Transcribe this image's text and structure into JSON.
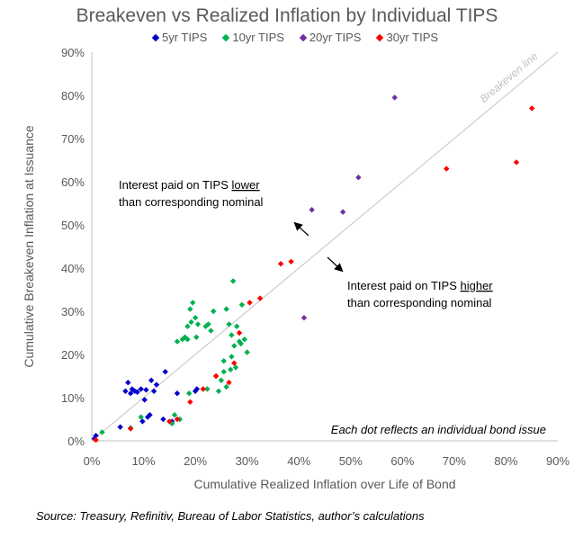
{
  "chart_data": {
    "type": "scatter",
    "title": "Breakeven vs Realized Inflation by Individual TIPS",
    "xlabel": "Cumulative Realized Inflation over Life of Bond",
    "ylabel": "Cumulative Breakeven Inflation at Issuance",
    "xlim": [
      0,
      90
    ],
    "ylim": [
      0,
      90
    ],
    "x_ticks": [
      "0%",
      "10%",
      "20%",
      "30%",
      "40%",
      "50%",
      "60%",
      "70%",
      "80%",
      "90%"
    ],
    "y_ticks": [
      "0%",
      "10%",
      "20%",
      "30%",
      "40%",
      "50%",
      "60%",
      "70%",
      "80%",
      "90%"
    ],
    "grid": false,
    "legend_position": "top",
    "series": [
      {
        "name": "5yr TIPS",
        "color": "#0000CC",
        "points": [
          [
            0.5,
            0.5
          ],
          [
            0.8,
            1.2
          ],
          [
            5.5,
            3.2
          ],
          [
            6.5,
            11.5
          ],
          [
            7.0,
            13.5
          ],
          [
            7.5,
            11.0
          ],
          [
            7.8,
            12.0
          ],
          [
            8.3,
            11.5
          ],
          [
            8.8,
            11.3
          ],
          [
            9.5,
            12.0
          ],
          [
            9.8,
            4.5
          ],
          [
            10.2,
            9.5
          ],
          [
            10.5,
            11.8
          ],
          [
            10.8,
            5.5
          ],
          [
            11.2,
            6.0
          ],
          [
            11.5,
            14.0
          ],
          [
            12.0,
            11.5
          ],
          [
            12.5,
            13.0
          ],
          [
            13.8,
            5.0
          ],
          [
            14.2,
            16.0
          ],
          [
            15.5,
            4.5
          ],
          [
            16.5,
            11.0
          ],
          [
            20.0,
            11.5
          ],
          [
            20.3,
            12.0
          ]
        ]
      },
      {
        "name": "10yr TIPS",
        "color": "#00B050",
        "points": [
          [
            2.0,
            2.0
          ],
          [
            7.5,
            3.0
          ],
          [
            9.5,
            5.5
          ],
          [
            15.5,
            4.0
          ],
          [
            16.0,
            6.0
          ],
          [
            16.5,
            23.0
          ],
          [
            17.0,
            5.0
          ],
          [
            17.5,
            23.5
          ],
          [
            18.0,
            24.0
          ],
          [
            18.5,
            26.5
          ],
          [
            18.5,
            23.5
          ],
          [
            18.8,
            11.0
          ],
          [
            19.0,
            30.5
          ],
          [
            19.2,
            27.5
          ],
          [
            19.5,
            32.0
          ],
          [
            20.0,
            28.5
          ],
          [
            20.2,
            24.0
          ],
          [
            20.5,
            27.0
          ],
          [
            21.5,
            12.0
          ],
          [
            22.0,
            26.5
          ],
          [
            22.3,
            12.0
          ],
          [
            22.5,
            27.0
          ],
          [
            23.0,
            25.5
          ],
          [
            23.5,
            30.0
          ],
          [
            24.0,
            15.0
          ],
          [
            24.5,
            11.5
          ],
          [
            25.0,
            14.0
          ],
          [
            25.5,
            18.5
          ],
          [
            25.5,
            16.0
          ],
          [
            26.0,
            12.5
          ],
          [
            26.0,
            30.5
          ],
          [
            26.5,
            27.0
          ],
          [
            26.8,
            16.5
          ],
          [
            27.0,
            24.5
          ],
          [
            27.0,
            19.5
          ],
          [
            27.3,
            37.0
          ],
          [
            27.5,
            22.0
          ],
          [
            27.8,
            17.0
          ],
          [
            28.0,
            26.5
          ],
          [
            28.5,
            23.0
          ],
          [
            28.8,
            22.5
          ],
          [
            29.0,
            31.5
          ],
          [
            29.5,
            23.5
          ],
          [
            30.0,
            20.5
          ]
        ]
      },
      {
        "name": "20yr TIPS",
        "color": "#7030A0",
        "points": [
          [
            41.0,
            28.5
          ],
          [
            42.5,
            53.5
          ],
          [
            48.5,
            53.0
          ],
          [
            51.5,
            61.0
          ],
          [
            58.5,
            79.5
          ]
        ]
      },
      {
        "name": "30yr TIPS",
        "color": "#FF0000",
        "points": [
          [
            0.8,
            0.2
          ],
          [
            7.5,
            2.8
          ],
          [
            15.0,
            4.5
          ],
          [
            16.5,
            5.0
          ],
          [
            19.0,
            9.0
          ],
          [
            21.5,
            12.0
          ],
          [
            24.0,
            15.0
          ],
          [
            26.5,
            13.5
          ],
          [
            27.5,
            18.0
          ],
          [
            28.5,
            25.0
          ],
          [
            30.5,
            32.0
          ],
          [
            32.5,
            33.0
          ],
          [
            36.5,
            41.0
          ],
          [
            38.5,
            41.5
          ],
          [
            68.5,
            63.0
          ],
          [
            82.0,
            64.5
          ],
          [
            85.0,
            77.0
          ]
        ]
      }
    ],
    "reference_line": {
      "label": "Breakeven line",
      "from": [
        0,
        0
      ],
      "to": [
        90,
        90
      ]
    },
    "annotations": {
      "upper_text_pre": "Interest paid on TIPS ",
      "upper_text_emph": "lower",
      "upper_text_line2": "than corresponding nominal",
      "lower_text_pre": "Interest paid on TIPS ",
      "lower_text_emph": "higher",
      "lower_text_line2": "than corresponding nominal",
      "note": "Each dot reflects an individual bond issue"
    }
  },
  "source": "Source: Treasury, Refinitiv, Bureau of Labor Statistics, author’s calculations"
}
